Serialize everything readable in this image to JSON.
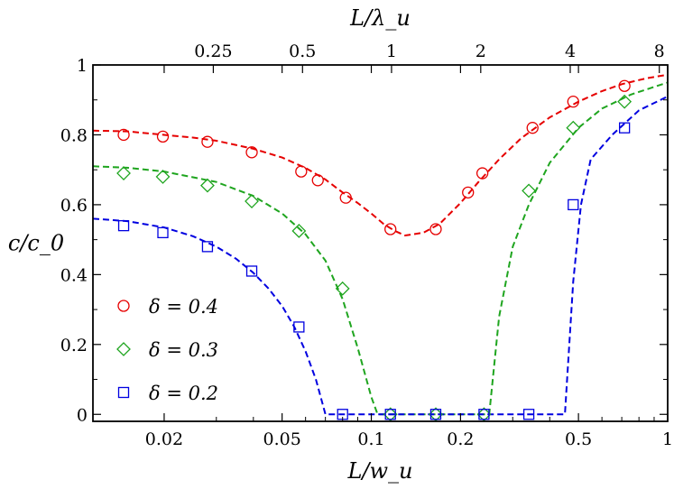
{
  "chart_data": {
    "type": "scatter",
    "xscale": "log",
    "xlabel": "L/w_u",
    "ylabel": "c/c_0",
    "top_xlabel": "L/λ_u",
    "xlim": [
      0.0115,
      1.0
    ],
    "ylim": [
      -0.02,
      1.0
    ],
    "x_ticks": [
      0.02,
      0.05,
      0.1,
      0.2,
      0.5,
      1
    ],
    "x_tick_labels": [
      "0.02",
      "0.05",
      "0.1",
      "0.2",
      "0.5",
      "1"
    ],
    "y_ticks": [
      0,
      0.2,
      0.4,
      0.6,
      0.8,
      1
    ],
    "y_tick_labels": [
      "0",
      "0.2",
      "0.4",
      "0.6",
      "0.8",
      "1"
    ],
    "top_ticks_bottom_equiv": [
      0.0293,
      0.0586,
      0.117,
      0.234,
      0.469,
      0.937
    ],
    "top_tick_labels": [
      "0.25",
      "0.5",
      "1",
      "2",
      "4",
      "8"
    ],
    "legend_position": "bottom-left",
    "series": [
      {
        "name": "δ = 0.4",
        "color": "#e60000",
        "marker": "circle",
        "points": [
          [
            0.0146,
            0.8
          ],
          [
            0.0198,
            0.795
          ],
          [
            0.028,
            0.78
          ],
          [
            0.0395,
            0.75
          ],
          [
            0.058,
            0.695
          ],
          [
            0.066,
            0.67
          ],
          [
            0.082,
            0.62
          ],
          [
            0.116,
            0.53
          ],
          [
            0.165,
            0.53
          ],
          [
            0.212,
            0.635
          ],
          [
            0.237,
            0.69
          ],
          [
            0.35,
            0.82
          ],
          [
            0.48,
            0.895
          ],
          [
            0.715,
            0.94
          ]
        ],
        "curve": [
          [
            0.0115,
            0.812
          ],
          [
            0.015,
            0.81
          ],
          [
            0.02,
            0.8
          ],
          [
            0.025,
            0.792
          ],
          [
            0.03,
            0.783
          ],
          [
            0.04,
            0.76
          ],
          [
            0.05,
            0.735
          ],
          [
            0.06,
            0.705
          ],
          [
            0.07,
            0.672
          ],
          [
            0.08,
            0.635
          ],
          [
            0.09,
            0.605
          ],
          [
            0.1,
            0.575
          ],
          [
            0.11,
            0.545
          ],
          [
            0.12,
            0.525
          ],
          [
            0.13,
            0.512
          ],
          [
            0.15,
            0.52
          ],
          [
            0.17,
            0.545
          ],
          [
            0.2,
            0.605
          ],
          [
            0.23,
            0.665
          ],
          [
            0.27,
            0.73
          ],
          [
            0.32,
            0.79
          ],
          [
            0.4,
            0.85
          ],
          [
            0.5,
            0.895
          ],
          [
            0.6,
            0.925
          ],
          [
            0.7,
            0.945
          ],
          [
            0.85,
            0.962
          ],
          [
            1.0,
            0.972
          ]
        ]
      },
      {
        "name": "δ = 0.3",
        "color": "#1fa51f",
        "marker": "diamond",
        "points": [
          [
            0.0146,
            0.69
          ],
          [
            0.0198,
            0.68
          ],
          [
            0.028,
            0.655
          ],
          [
            0.0395,
            0.61
          ],
          [
            0.057,
            0.525
          ],
          [
            0.08,
            0.36
          ],
          [
            0.116,
            0.0
          ],
          [
            0.165,
            0.0
          ],
          [
            0.24,
            0.0
          ],
          [
            0.34,
            0.64
          ],
          [
            0.48,
            0.82
          ],
          [
            0.715,
            0.895
          ]
        ],
        "curve": [
          [
            0.0115,
            0.71
          ],
          [
            0.015,
            0.706
          ],
          [
            0.02,
            0.695
          ],
          [
            0.03,
            0.665
          ],
          [
            0.04,
            0.625
          ],
          [
            0.05,
            0.575
          ],
          [
            0.06,
            0.515
          ],
          [
            0.07,
            0.44
          ],
          [
            0.08,
            0.33
          ],
          [
            0.09,
            0.19
          ],
          [
            0.1,
            0.05
          ],
          [
            0.105,
            0.0
          ],
          [
            0.25,
            0.0
          ],
          [
            0.27,
            0.28
          ],
          [
            0.3,
            0.48
          ],
          [
            0.34,
            0.6
          ],
          [
            0.4,
            0.72
          ],
          [
            0.5,
            0.82
          ],
          [
            0.6,
            0.875
          ],
          [
            0.75,
            0.915
          ],
          [
            1.0,
            0.95
          ]
        ]
      },
      {
        "name": "δ = 0.2",
        "color": "#0000e0",
        "marker": "square",
        "points": [
          [
            0.0146,
            0.54
          ],
          [
            0.0198,
            0.52
          ],
          [
            0.028,
            0.48
          ],
          [
            0.0395,
            0.41
          ],
          [
            0.057,
            0.25
          ],
          [
            0.08,
            0.0
          ],
          [
            0.116,
            0.0
          ],
          [
            0.165,
            0.0
          ],
          [
            0.24,
            0.0
          ],
          [
            0.34,
            0.0
          ],
          [
            0.48,
            0.6
          ],
          [
            0.715,
            0.82
          ]
        ],
        "curve": [
          [
            0.0115,
            0.56
          ],
          [
            0.015,
            0.553
          ],
          [
            0.02,
            0.535
          ],
          [
            0.025,
            0.51
          ],
          [
            0.03,
            0.48
          ],
          [
            0.035,
            0.445
          ],
          [
            0.04,
            0.405
          ],
          [
            0.045,
            0.36
          ],
          [
            0.05,
            0.31
          ],
          [
            0.055,
            0.25
          ],
          [
            0.06,
            0.18
          ],
          [
            0.065,
            0.1
          ],
          [
            0.07,
            0.0
          ],
          [
            0.45,
            0.0
          ],
          [
            0.48,
            0.38
          ],
          [
            0.51,
            0.6
          ],
          [
            0.55,
            0.73
          ],
          [
            0.65,
            0.8
          ],
          [
            0.8,
            0.87
          ],
          [
            1.0,
            0.91
          ]
        ]
      }
    ]
  }
}
